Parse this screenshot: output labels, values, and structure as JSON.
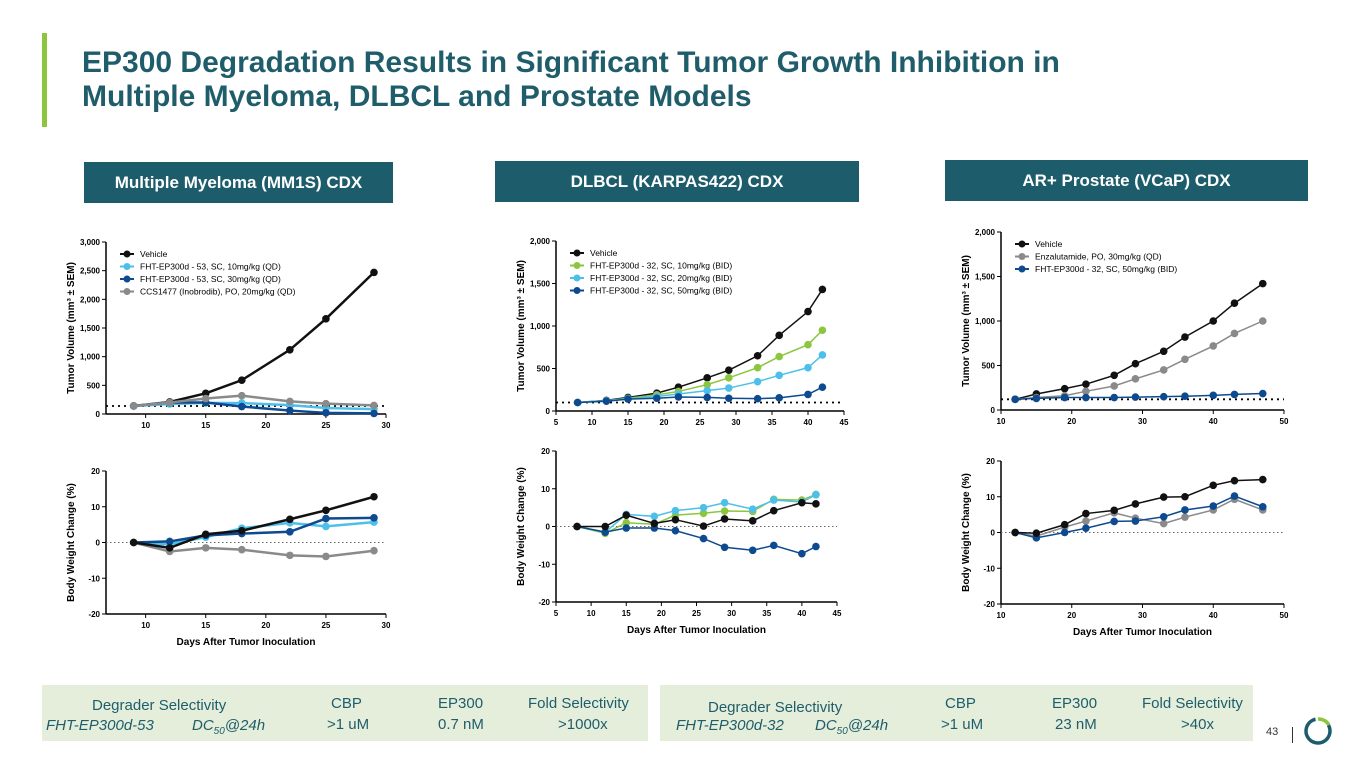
{
  "title_line1": "EP300 Degradation Results in Significant Tumor Growth Inhibition in",
  "title_line2": "Multiple Myeloma, DLBCL and Prostate Models",
  "panels": [
    "Multiple Myeloma (MM1S) CDX",
    "DLBCL (KARPAS422) CDX",
    "AR+ Prostate (VCaP) CDX"
  ],
  "colors": {
    "vehicle": "#111111",
    "light_blue": "#4cc0ea",
    "dark_blue": "#0d4a8f",
    "gray": "#8a8a8a",
    "green": "#8cc63f",
    "teal": "#1d5c6b"
  },
  "selectivity": [
    {
      "label": "Degrader Selectivity",
      "compound": "FHT-EP300d-53",
      "dc": "DC",
      "dc_sub": "50",
      "dc_tail": "@24h",
      "cbp_h": "CBP",
      "cbp": ">1 uM",
      "ep_h": "EP300",
      "ep": "0.7 nM",
      "fold_h": "Fold Selectivity",
      "fold": ">1000x"
    },
    {
      "label": "Degrader Selectivity",
      "compound": "FHT-EP300d-32",
      "dc": "DC",
      "dc_sub": "50",
      "dc_tail": "@24h",
      "cbp_h": "CBP",
      "cbp": ">1 uM",
      "ep_h": "EP300",
      "ep": "23 nM",
      "fold_h": "Fold Selectivity",
      "fold": ">40x"
    }
  ],
  "page_number": "43",
  "chart_data": [
    {
      "type": "line",
      "id": "mm-tv",
      "ylabel": "Tumor Volume (mm³ ± SEM)",
      "xlabel": "",
      "xlim": [
        6.7,
        30
      ],
      "ylim": [
        0,
        3000
      ],
      "xticks": [
        10,
        15,
        20,
        25,
        30
      ],
      "yticks": [
        0,
        500,
        1000,
        1500,
        2000,
        2500,
        3000
      ],
      "ytick_labels": [
        "0",
        "500",
        "1,000",
        "1,500",
        "2,000",
        "2,500",
        "3,000"
      ],
      "baseline": 140,
      "legend": "top-left",
      "x": [
        9,
        12,
        15,
        18,
        22,
        25,
        29
      ],
      "series": [
        {
          "name": "Vehicle",
          "color": "#111111",
          "values": [
            140,
            210,
            360,
            590,
            1120,
            1660,
            2470
          ]
        },
        {
          "name": "FHT-EP300d - 53, SC, 10mg/kg (QD)",
          "color": "#4cc0ea",
          "values": [
            140,
            175,
            195,
            190,
            155,
            105,
            85
          ]
        },
        {
          "name": "FHT-EP300d - 53, SC, 30mg/kg (QD)",
          "color": "#0d4a8f",
          "values": [
            140,
            200,
            200,
            130,
            60,
            20,
            10
          ]
        },
        {
          "name": "CCS1477 (Inobrodib), PO, 20mg/kg (QD)",
          "color": "#8a8a8a",
          "values": [
            140,
            200,
            270,
            320,
            220,
            180,
            150
          ]
        }
      ]
    },
    {
      "type": "line",
      "id": "mm-bw",
      "ylabel": "Body Weight Change (%)",
      "xlabel": "Days After Tumor Inoculation",
      "xlim": [
        6.7,
        30
      ],
      "ylim": [
        -20,
        20
      ],
      "xticks": [
        10,
        15,
        20,
        25,
        30
      ],
      "yticks": [
        -20,
        -10,
        0,
        10,
        20
      ],
      "ytick_labels": [
        "-20",
        "-10",
        "0",
        "10",
        "20"
      ],
      "baseline": 0,
      "x": [
        9,
        12,
        15,
        18,
        22,
        25,
        29
      ],
      "series": [
        {
          "name": "CCS1477 (Inobrodib), PO, 20mg/kg (QD)",
          "color": "#8a8a8a",
          "values": [
            0,
            -2.5,
            -1.5,
            -2,
            -3.6,
            -3.9,
            -2.3
          ]
        },
        {
          "name": "FHT-EP300d - 53, SC, 10mg/kg (QD)",
          "color": "#4cc0ea",
          "values": [
            0,
            -0.5,
            1.5,
            4,
            5.5,
            4.5,
            5.7
          ]
        },
        {
          "name": "FHT-EP300d - 53, SC, 30mg/kg (QD)",
          "color": "#0d4a8f",
          "values": [
            0,
            0.3,
            2,
            2.5,
            3,
            6.7,
            6.9
          ]
        },
        {
          "name": "Vehicle",
          "color": "#111111",
          "values": [
            0,
            -1.5,
            2.3,
            3.3,
            6.5,
            9,
            12.8
          ]
        }
      ]
    },
    {
      "type": "line",
      "id": "dlbcl-tv",
      "ylabel": "Tumor Volume (mm³ ± SEM)",
      "xlabel": "",
      "xlim": [
        5,
        45
      ],
      "ylim": [
        0,
        2000
      ],
      "xticks": [
        5,
        10,
        15,
        20,
        25,
        30,
        35,
        40,
        45
      ],
      "yticks": [
        0,
        500,
        1000,
        1500,
        2000
      ],
      "ytick_labels": [
        "0",
        "500",
        "1,000",
        "1,500",
        "2,000"
      ],
      "baseline": 100,
      "legend": "top-left",
      "x": [
        8,
        12,
        15,
        19,
        22,
        26,
        29,
        33,
        36,
        40,
        42
      ],
      "series": [
        {
          "name": "Vehicle",
          "color": "#111111",
          "values": [
            100,
            125,
            160,
            210,
            280,
            390,
            480,
            650,
            890,
            1170,
            1430
          ]
        },
        {
          "name": "FHT-EP300d - 32, SC, 10mg/kg (BID)",
          "color": "#8cc63f",
          "values": [
            100,
            120,
            150,
            190,
            230,
            310,
            390,
            510,
            640,
            780,
            950
          ]
        },
        {
          "name": "FHT-EP300d - 32, SC, 20mg/kg (BID)",
          "color": "#4cc0ea",
          "values": [
            100,
            120,
            145,
            170,
            200,
            240,
            270,
            345,
            420,
            510,
            660
          ]
        },
        {
          "name": "FHT-EP300d - 32, SC, 50mg/kg (BID)",
          "color": "#0d4a8f",
          "values": [
            100,
            115,
            140,
            150,
            165,
            160,
            150,
            145,
            155,
            195,
            280
          ]
        }
      ]
    },
    {
      "type": "line",
      "id": "dlbcl-bw",
      "ylabel": "Body Weight Change (%)",
      "xlabel": "Days After Tumor Inoculation",
      "xlim": [
        5,
        45
      ],
      "ylim": [
        -20,
        20
      ],
      "xticks": [
        5,
        10,
        15,
        20,
        25,
        30,
        35,
        40,
        45
      ],
      "yticks": [
        -20,
        -10,
        0,
        10,
        20
      ],
      "ytick_labels": [
        "-20",
        "-10",
        "0",
        "10",
        "20"
      ],
      "baseline": 0,
      "x": [
        8,
        12,
        15,
        19,
        22,
        26,
        29,
        33,
        36,
        40,
        42
      ],
      "series": [
        {
          "name": "FHT-EP300d - 32, SC, 10mg/kg (BID)",
          "color": "#8cc63f",
          "values": [
            0,
            -1.8,
            1,
            0.6,
            3,
            3.5,
            4.1,
            4,
            7.2,
            7,
            8.5
          ]
        },
        {
          "name": "FHT-EP300d - 32, SC, 20mg/kg (BID)",
          "color": "#4cc0ea",
          "values": [
            0,
            -1.5,
            3.2,
            2.7,
            4.2,
            5,
            6.3,
            4.6,
            7,
            6.5,
            8.4
          ]
        },
        {
          "name": "FHT-EP300d - 32, SC, 50mg/kg (BID)",
          "color": "#0d4a8f",
          "values": [
            0,
            -1.5,
            -0.4,
            -0.4,
            -1.1,
            -3.2,
            -5.5,
            -6.3,
            -5,
            -7.2,
            -5.3
          ]
        },
        {
          "name": "Vehicle",
          "color": "#111111",
          "values": [
            0,
            0,
            3,
            0.8,
            1.8,
            0.1,
            2,
            1.5,
            4.2,
            6.3,
            6
          ]
        }
      ]
    },
    {
      "type": "line",
      "id": "vcap-tv",
      "ylabel": "Tumor Volume (mm³ ± SEM)",
      "xlabel": "",
      "xlim": [
        10,
        50
      ],
      "ylim": [
        0,
        2000
      ],
      "xticks": [
        10,
        20,
        30,
        40,
        50
      ],
      "yticks": [
        0,
        500,
        1000,
        1500,
        2000
      ],
      "ytick_labels": [
        "0",
        "500",
        "1,000",
        "1,500",
        "2,000"
      ],
      "baseline": 120,
      "legend": "top-left",
      "x": [
        12,
        15,
        19,
        22,
        26,
        29,
        33,
        36,
        40,
        43,
        47
      ],
      "series": [
        {
          "name": "Vehicle",
          "color": "#111111",
          "values": [
            120,
            180,
            240,
            290,
            390,
            520,
            660,
            820,
            1000,
            1200,
            1420
          ]
        },
        {
          "name": "Enzalutamide, PO, 30mg/kg (QD)",
          "color": "#8a8a8a",
          "values": [
            120,
            140,
            160,
            210,
            270,
            350,
            450,
            570,
            720,
            860,
            1000
          ]
        },
        {
          "name": "FHT-EP300d - 32, SC, 50mg/kg (BID)",
          "color": "#0d4a8f",
          "values": [
            120,
            130,
            140,
            140,
            140,
            145,
            150,
            155,
            165,
            175,
            185
          ]
        }
      ]
    },
    {
      "type": "line",
      "id": "vcap-bw",
      "ylabel": "Body Weight Change (%)",
      "xlabel": "Days After Tumor Inoculation",
      "xlim": [
        10,
        50
      ],
      "ylim": [
        -20,
        20
      ],
      "xticks": [
        10,
        20,
        30,
        40,
        50
      ],
      "yticks": [
        -20,
        -10,
        0,
        10,
        20
      ],
      "ytick_labels": [
        "-20",
        "-10",
        "0",
        "10",
        "20"
      ],
      "baseline": 0,
      "x": [
        12,
        15,
        19,
        22,
        26,
        29,
        33,
        36,
        40,
        43,
        47
      ],
      "series": [
        {
          "name": "Enzalutamide, PO, 30mg/kg (QD)",
          "color": "#8a8a8a",
          "values": [
            0,
            -1,
            1.5,
            3.2,
            5.5,
            4,
            2.5,
            4.3,
            6.3,
            9.3,
            6.3
          ]
        },
        {
          "name": "FHT-EP300d - 32, SC, 50mg/kg (BID)",
          "color": "#0d4a8f",
          "values": [
            0,
            -1.5,
            0,
            1.2,
            3.1,
            3.2,
            4.4,
            6.3,
            7.4,
            10.2,
            7.2
          ]
        },
        {
          "name": "Vehicle",
          "color": "#111111",
          "values": [
            0,
            -0.2,
            2.2,
            5.3,
            6.2,
            8,
            9.9,
            10,
            13.2,
            14.5,
            14.8
          ]
        }
      ]
    }
  ]
}
